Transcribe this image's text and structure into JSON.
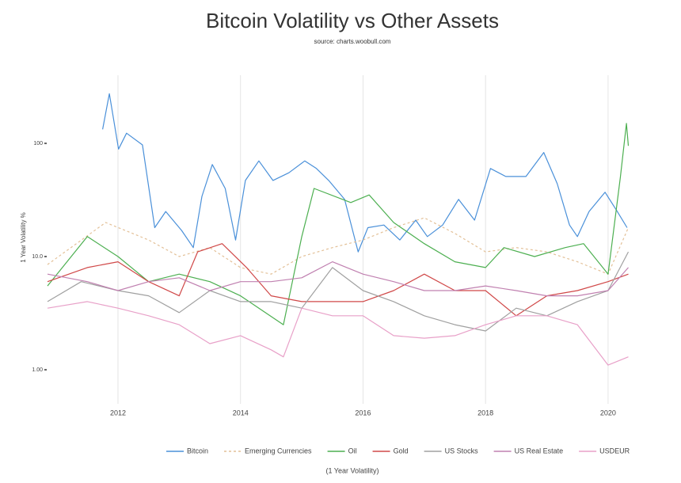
{
  "chart_data": {
    "type": "line",
    "title": "Bitcoin Volatility vs Other Assets",
    "subtitle": "source: charts.woobull.com",
    "y_label": "1 Year Volatility %",
    "x_label": "(1 Year Volatility)",
    "log_y": true,
    "xgrid": true,
    "legend": "bottom",
    "xlim": [
      2010.85,
      2020.35
    ],
    "xticks": [
      2012,
      2014,
      2016,
      2018,
      2020
    ],
    "ylim": [
      0.5,
      400
    ],
    "yticks": [
      {
        "value": 1,
        "label": "1.00"
      },
      {
        "value": 10,
        "label": "10.0"
      },
      100
    ],
    "series": [
      {
        "name": "Bitcoin",
        "color": "#4a90d9",
        "dashed": false,
        "x": [
          2011.75,
          2011.86,
          2012.01,
          2012.14,
          2012.4,
          2012.6,
          2012.78,
          2013.04,
          2013.23,
          2013.37,
          2013.54,
          2013.75,
          2013.92,
          2014.08,
          2014.3,
          2014.53,
          2014.79,
          2015.05,
          2015.24,
          2015.44,
          2015.7,
          2015.92,
          2016.08,
          2016.34,
          2016.6,
          2016.86,
          2017.05,
          2017.3,
          2017.56,
          2017.82,
          2018.08,
          2018.33,
          2018.66,
          2018.95,
          2019.17,
          2019.37,
          2019.5,
          2019.69,
          2019.95,
          2020.15,
          2020.31
        ],
        "values": [
          133,
          275,
          89,
          123,
          97,
          18,
          25,
          17,
          12,
          34,
          65,
          40,
          14,
          47,
          70,
          47,
          55,
          70,
          60,
          47,
          32,
          11,
          18,
          19,
          14,
          21,
          15,
          19,
          32,
          21,
          60,
          51,
          51,
          83,
          44,
          19,
          15,
          25,
          37,
          25,
          18
        ]
      },
      {
        "name": "Emerging Currencies",
        "color": "#e3c097",
        "dashed": true,
        "x": [
          2010.85,
          2011.8,
          2012.5,
          2013,
          2013.5,
          2014,
          2014.5,
          2015,
          2015.5,
          2016,
          2016.5,
          2017,
          2017.5,
          2018,
          2018.5,
          2019,
          2019.5,
          2020,
          2020.33
        ],
        "values": [
          8.5,
          20,
          14,
          10,
          12,
          8,
          7,
          10,
          12,
          14,
          18,
          22,
          16,
          11,
          12,
          11,
          9,
          7,
          18
        ]
      },
      {
        "name": "Oil",
        "color": "#4caf50",
        "dashed": false,
        "x": [
          2010.85,
          2011.5,
          2012,
          2012.5,
          2013,
          2013.5,
          2014,
          2014.7,
          2015,
          2015.2,
          2015.8,
          2016.1,
          2016.5,
          2017,
          2017.5,
          2018,
          2018.3,
          2018.8,
          2019.3,
          2019.6,
          2020,
          2020.2,
          2020.3,
          2020.33
        ],
        "values": [
          5.5,
          15,
          10,
          6,
          7,
          6,
          4.5,
          2.5,
          15,
          40,
          30,
          35,
          20,
          13,
          9,
          8,
          12,
          10,
          12,
          13,
          7,
          50,
          150,
          95
        ]
      },
      {
        "name": "Gold",
        "color": "#d04848",
        "dashed": false,
        "x": [
          2010.85,
          2011.5,
          2012,
          2012.5,
          2013,
          2013.3,
          2013.7,
          2014.1,
          2014.5,
          2015,
          2015.5,
          2016,
          2016.5,
          2017,
          2017.5,
          2018,
          2018.5,
          2019,
          2019.5,
          2020,
          2020.33
        ],
        "values": [
          6,
          8,
          9,
          6,
          4.5,
          11,
          13,
          8,
          4.5,
          4,
          4,
          4,
          5,
          7,
          5,
          5,
          3,
          4.5,
          5,
          6,
          7
        ]
      },
      {
        "name": "US Stocks",
        "color": "#a0a0a0",
        "dashed": false,
        "x": [
          2010.85,
          2011.4,
          2012,
          2012.5,
          2013,
          2013.5,
          2014,
          2014.5,
          2015,
          2015.5,
          2016,
          2016.5,
          2017,
          2017.5,
          2018,
          2018.5,
          2019,
          2019.5,
          2020,
          2020.33
        ],
        "values": [
          4,
          6,
          5,
          4.5,
          3.2,
          5,
          4,
          4,
          3.5,
          8,
          5,
          4,
          3,
          2.5,
          2.2,
          3.5,
          3,
          4,
          5,
          11
        ]
      },
      {
        "name": "US Real Estate",
        "color": "#c080b0",
        "dashed": false,
        "x": [
          2010.85,
          2011.5,
          2012,
          2012.5,
          2013,
          2013.5,
          2014,
          2014.5,
          2015,
          2015.5,
          2016,
          2016.5,
          2017,
          2017.5,
          2018,
          2018.5,
          2019,
          2019.5,
          2020,
          2020.33
        ],
        "values": [
          7,
          6,
          5,
          6,
          6.5,
          5,
          6,
          6,
          6.5,
          9,
          7,
          6,
          5,
          5,
          5.5,
          5,
          4.5,
          4.5,
          5,
          8
        ]
      },
      {
        "name": "USDEUR",
        "color": "#e8a0c8",
        "dashed": false,
        "x": [
          2010.85,
          2011.5,
          2012,
          2012.5,
          2013,
          2013.5,
          2014,
          2014.5,
          2014.7,
          2015,
          2015.5,
          2016,
          2016.5,
          2017,
          2017.5,
          2018,
          2018.5,
          2019,
          2019.5,
          2020,
          2020.33
        ],
        "values": [
          3.5,
          4,
          3.5,
          3,
          2.5,
          1.7,
          2,
          1.5,
          1.3,
          3.5,
          3,
          3,
          2,
          1.9,
          2,
          2.5,
          3,
          3,
          2.5,
          1.1,
          1.3
        ]
      }
    ]
  }
}
